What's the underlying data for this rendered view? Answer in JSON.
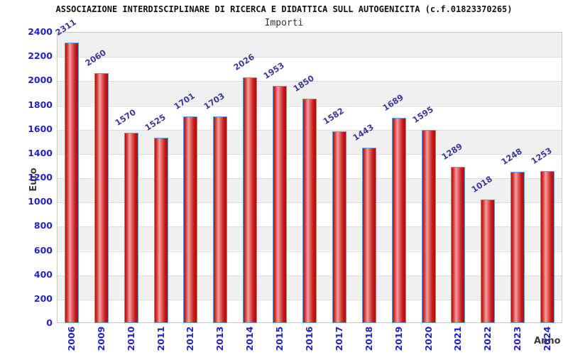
{
  "chart_data": {
    "type": "bar",
    "title": "ASSOCIAZIONE INTERDISCIPLINARE DI RICERCA E DIDATTICA SULL AUTOGENICITA (c.f.01823370265)",
    "subtitle": "Importi",
    "xlabel": "Anno",
    "ylabel": "Euro",
    "categories": [
      "2006",
      "2009",
      "2010",
      "2011",
      "2012",
      "2013",
      "2014",
      "2015",
      "2016",
      "2017",
      "2018",
      "2019",
      "2020",
      "2021",
      "2022",
      "2023",
      "2024"
    ],
    "values": [
      2311,
      2060,
      1570,
      1525,
      1701,
      1703,
      2026,
      1953,
      1850,
      1582,
      1443,
      1689,
      1595,
      1289,
      1018,
      1248,
      1253
    ],
    "ylim": [
      0,
      2400
    ],
    "ytick_step": 200,
    "y_ticks": [
      2400,
      2200,
      2000,
      1800,
      1600,
      1400,
      1200,
      1000,
      800,
      600,
      400,
      200,
      0
    ],
    "grid": true,
    "legend": "none",
    "plot_bands_alternating": true,
    "colors": {
      "bar_fill_dark": "#b00d0d",
      "bar_fill_light": "#f2a0a0",
      "bar_border": "#5d9fd4",
      "value_text": "#3a3a9e",
      "axis_text": "#2222cc",
      "band": "#f0f0f0",
      "gridline": "#dcdcdc",
      "title_text": "#111111",
      "axis_title_text": "#3a3a3a"
    }
  }
}
